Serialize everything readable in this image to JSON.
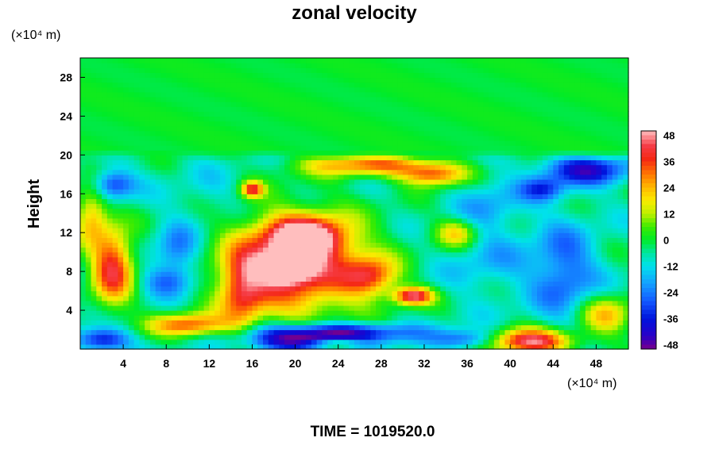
{
  "chart_data": {
    "type": "heatmap",
    "title": "zonal velocity",
    "ylabel": "Height",
    "y_unit": "(×10⁴ m)",
    "x_unit": "(×10⁴ m)",
    "xlim": [
      0,
      51
    ],
    "ylim": [
      0,
      30
    ],
    "x_ticks": [
      4,
      8,
      12,
      16,
      20,
      24,
      28,
      32,
      36,
      40,
      44,
      48
    ],
    "y_ticks": [
      4,
      8,
      12,
      16,
      20,
      24,
      28
    ],
    "colorbar": {
      "range": [
        -50,
        50
      ],
      "tick_labels": [
        48,
        36,
        24,
        12,
        0,
        -12,
        -24,
        -36,
        -48
      ]
    },
    "background_value": -6,
    "field_features": [
      {
        "x": 20,
        "y": 8.5,
        "value": 40,
        "sx": 6.5,
        "sy": 5.5
      },
      {
        "x": 21,
        "y": 11.5,
        "value": 44,
        "sx": 3.5,
        "sy": 2.0
      },
      {
        "x": 19,
        "y": 8.5,
        "value": 44,
        "sx": 2.5,
        "sy": 1.5
      },
      {
        "x": 15,
        "y": 6.0,
        "value": 24,
        "sx": 2.0,
        "sy": 4.0
      },
      {
        "x": 27,
        "y": 7.5,
        "value": 28,
        "sx": 2.5,
        "sy": 2.0
      },
      {
        "x": 31,
        "y": 5.5,
        "value": 44,
        "sx": 1.8,
        "sy": 0.9
      },
      {
        "x": 27,
        "y": 19,
        "value": 30,
        "sx": 6.0,
        "sy": 1.2
      },
      {
        "x": 33,
        "y": 18,
        "value": 30,
        "sx": 3.0,
        "sy": 1.2
      },
      {
        "x": 16,
        "y": 16.5,
        "value": 34,
        "sx": 1.0,
        "sy": 0.8
      },
      {
        "x": 3,
        "y": 8.5,
        "value": 40,
        "sx": 2.0,
        "sy": 4.0
      },
      {
        "x": 1,
        "y": 14,
        "value": 22,
        "sx": 1.5,
        "sy": 3.0
      },
      {
        "x": 10,
        "y": 2.5,
        "value": 32,
        "sx": 3.5,
        "sy": 1.2
      },
      {
        "x": 42,
        "y": 0.8,
        "value": 46,
        "sx": 4.0,
        "sy": 1.3
      },
      {
        "x": 24,
        "y": 0.6,
        "value": 30,
        "sx": 2.5,
        "sy": 0.6
      },
      {
        "x": 49,
        "y": 3.5,
        "value": 22,
        "sx": 2.5,
        "sy": 2.0
      },
      {
        "x": 35,
        "y": 12,
        "value": 20,
        "sx": 2.0,
        "sy": 1.5
      },
      {
        "x": 21,
        "y": 0.8,
        "value": -50,
        "sx": 5.5,
        "sy": 1.2
      },
      {
        "x": 24,
        "y": 1.8,
        "value": -40,
        "sx": 7.0,
        "sy": 1.0
      },
      {
        "x": 2,
        "y": 1.0,
        "value": -40,
        "sx": 2.5,
        "sy": 1.2
      },
      {
        "x": 36,
        "y": 1.0,
        "value": -30,
        "sx": 3.0,
        "sy": 1.0
      },
      {
        "x": 47,
        "y": 18.5,
        "value": -40,
        "sx": 4.0,
        "sy": 1.5
      },
      {
        "x": 43,
        "y": 16.5,
        "value": -30,
        "sx": 2.0,
        "sy": 1.2
      },
      {
        "x": 3,
        "y": 17,
        "value": -34,
        "sx": 2.0,
        "sy": 1.5
      },
      {
        "x": 9,
        "y": 10,
        "value": -26,
        "sx": 2.0,
        "sy": 3.0
      },
      {
        "x": 8,
        "y": 7,
        "value": -22,
        "sx": 2.5,
        "sy": 1.5
      },
      {
        "x": 45,
        "y": 8,
        "value": -28,
        "sx": 3.0,
        "sy": 5.0
      },
      {
        "x": 38,
        "y": 9,
        "value": -16,
        "sx": 4.0,
        "sy": 3.5
      },
      {
        "x": 38,
        "y": 15,
        "value": -18,
        "sx": 3.0,
        "sy": 3.0
      },
      {
        "x": 12,
        "y": 16,
        "value": -12,
        "sx": 3.0,
        "sy": 3.0
      }
    ],
    "layers": {
      "upper": {
        "from": 20.5,
        "to": 30,
        "value": 0
      },
      "gradient_top": 13
    }
  },
  "footer": {
    "time_text": "TIME = 1019520.0"
  }
}
